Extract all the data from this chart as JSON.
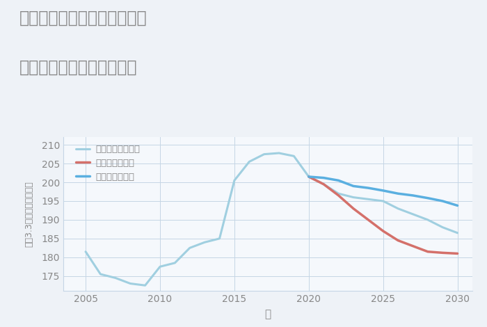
{
  "title_line1": "兵庫県西宮市上ヶ原二番町の",
  "title_line2": "中古マンションの価格推移",
  "xlabel": "年",
  "ylabel": "坪（3.3㎡）単価（万円）",
  "background_color": "#eef2f7",
  "plot_background_color": "#f5f8fc",
  "grid_color": "#c5d5e5",
  "title_color": "#888888",
  "tick_color": "#888888",
  "label_color": "#888888",
  "ylim": [
    171,
    212
  ],
  "yticks": [
    175,
    180,
    185,
    190,
    195,
    200,
    205,
    210
  ],
  "xticks": [
    2005,
    2010,
    2015,
    2020,
    2025,
    2030
  ],
  "xlim": [
    2003.5,
    2031
  ],
  "good_scenario": {
    "label": "グッドシナリオ",
    "color": "#5aafe0",
    "years": [
      2020,
      2021,
      2022,
      2023,
      2024,
      2025,
      2026,
      2027,
      2028,
      2029,
      2030
    ],
    "values": [
      201.5,
      201.2,
      200.5,
      199.0,
      198.5,
      197.8,
      197.0,
      196.5,
      195.8,
      195.0,
      193.8
    ],
    "linewidth": 2.5,
    "zorder": 4
  },
  "bad_scenario": {
    "label": "バッドシナリオ",
    "color": "#d4706a",
    "years": [
      2020,
      2021,
      2022,
      2023,
      2024,
      2025,
      2026,
      2027,
      2028,
      2029,
      2030
    ],
    "values": [
      201.5,
      199.5,
      196.5,
      193.0,
      190.0,
      187.0,
      184.5,
      183.0,
      181.5,
      181.2,
      181.0
    ],
    "linewidth": 2.5,
    "zorder": 3
  },
  "normal_scenario": {
    "label": "ノーマルシナリオ",
    "color": "#a0cfe0",
    "years": [
      2005,
      2006,
      2007,
      2008,
      2009,
      2010,
      2011,
      2012,
      2013,
      2014,
      2015,
      2016,
      2017,
      2018,
      2019,
      2020,
      2021,
      2022,
      2023,
      2024,
      2025,
      2026,
      2027,
      2028,
      2029,
      2030
    ],
    "values": [
      181.5,
      175.5,
      174.5,
      173.0,
      172.5,
      177.5,
      178.5,
      182.5,
      184.0,
      185.0,
      200.5,
      205.5,
      207.5,
      207.8,
      207.0,
      201.5,
      199.5,
      197.0,
      196.0,
      195.5,
      195.0,
      193.0,
      191.5,
      190.0,
      188.0,
      186.5
    ],
    "linewidth": 2.2,
    "zorder": 2
  }
}
